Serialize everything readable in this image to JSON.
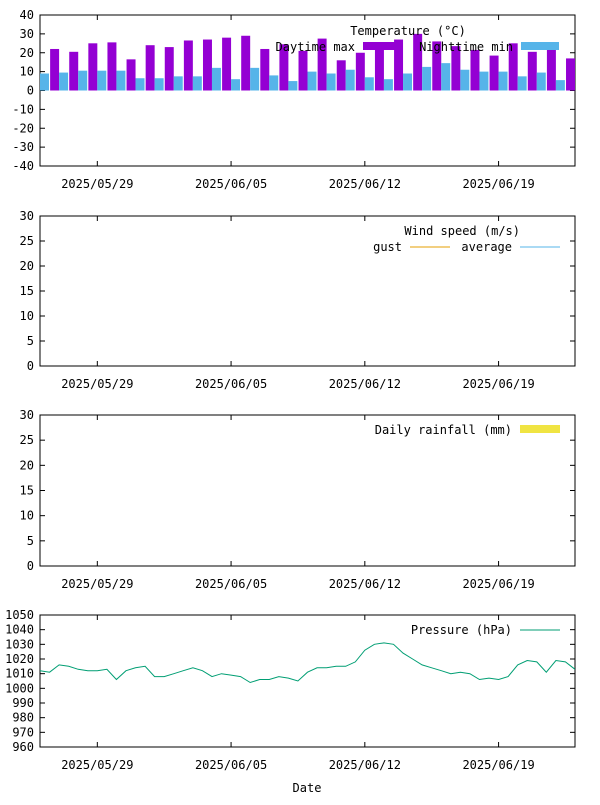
{
  "colors": {
    "daytime_max": "#9400d3",
    "nighttime_min": "#56b4e9",
    "wind_gust": "#e69f00",
    "wind_average": "#56b4e9",
    "rainfall": "#f0e442",
    "pressure": "#009e73",
    "axis": "#000000"
  },
  "xlabel": "Date",
  "x_tick_labels": [
    "2025/05/29",
    "2025/06/05",
    "2025/06/12",
    "2025/06/19"
  ],
  "x_tick_dates": [
    "2025-05-29",
    "2025-06-05",
    "2025-06-12",
    "2025-06-19"
  ],
  "x_range": [
    "2025-05-26",
    "2025-06-23"
  ],
  "chart_data": [
    {
      "type": "bar",
      "title": "Temperature (°C)",
      "ylim": [
        -40,
        40
      ],
      "yticks": [
        -40,
        -30,
        -20,
        -10,
        0,
        10,
        20,
        30,
        40
      ],
      "legend_placement": "top-right",
      "dates": [
        "2025-05-26",
        "2025-05-27",
        "2025-05-28",
        "2025-05-29",
        "2025-05-30",
        "2025-05-31",
        "2025-06-01",
        "2025-06-02",
        "2025-06-03",
        "2025-06-04",
        "2025-06-05",
        "2025-06-06",
        "2025-06-07",
        "2025-06-08",
        "2025-06-09",
        "2025-06-10",
        "2025-06-11",
        "2025-06-12",
        "2025-06-13",
        "2025-06-14",
        "2025-06-15",
        "2025-06-16",
        "2025-06-17",
        "2025-06-18",
        "2025-06-19",
        "2025-06-20",
        "2025-06-21",
        "2025-06-22",
        "2025-06-23"
      ],
      "series": [
        {
          "name": "Daytime max",
          "values": [
            22.5,
            22,
            20.5,
            25,
            25.5,
            16.5,
            24,
            23,
            26.5,
            27,
            28,
            29,
            22,
            24.5,
            21,
            27.5,
            16,
            20,
            22,
            27,
            30,
            26,
            23.5,
            21.5,
            18.5,
            25,
            20.5,
            25,
            17
          ]
        },
        {
          "name": "Nighttime min",
          "values": [
            9,
            9.5,
            10.5,
            10.5,
            10.5,
            6.5,
            6.5,
            7.5,
            7.5,
            12,
            6,
            12,
            8,
            5,
            10,
            9,
            11,
            7,
            6,
            9,
            12.5,
            14.5,
            11,
            10,
            10,
            7.5,
            9.5,
            5.5,
            5
          ]
        }
      ]
    },
    {
      "type": "line",
      "title": "Wind speed (m/s)",
      "ylim": [
        0,
        30
      ],
      "yticks": [
        0,
        5,
        10,
        15,
        20,
        25,
        30
      ],
      "legend_placement": "top-right",
      "series": [
        {
          "name": "gust",
          "values": []
        },
        {
          "name": "average",
          "values": []
        }
      ]
    },
    {
      "type": "bar",
      "title": "",
      "ylim": [
        0,
        30
      ],
      "yticks": [
        0,
        5,
        10,
        15,
        20,
        25,
        30
      ],
      "legend_placement": "top-right",
      "series": [
        {
          "name": "Daily rainfall (mm)",
          "values": []
        }
      ]
    },
    {
      "type": "line",
      "title": "",
      "ylim": [
        960,
        1050
      ],
      "yticks": [
        960,
        970,
        980,
        990,
        1000,
        1010,
        1020,
        1030,
        1040,
        1050
      ],
      "legend_placement": "top-right",
      "x_dates": [
        "2025-05-26",
        "2025-05-26T12:00",
        "2025-05-27",
        "2025-05-27T12:00",
        "2025-05-28",
        "2025-05-28T12:00",
        "2025-05-29",
        "2025-05-29T12:00",
        "2025-05-30",
        "2025-05-30T12:00",
        "2025-05-31",
        "2025-05-31T12:00",
        "2025-06-01",
        "2025-06-01T12:00",
        "2025-06-02",
        "2025-06-02T12:00",
        "2025-06-03",
        "2025-06-03T12:00",
        "2025-06-04",
        "2025-06-04T12:00",
        "2025-06-05",
        "2025-06-05T12:00",
        "2025-06-06",
        "2025-06-06T12:00",
        "2025-06-07",
        "2025-06-07T12:00",
        "2025-06-08",
        "2025-06-08T12:00",
        "2025-06-09",
        "2025-06-09T12:00",
        "2025-06-10",
        "2025-06-10T12:00",
        "2025-06-11",
        "2025-06-11T12:00",
        "2025-06-12",
        "2025-06-12T12:00",
        "2025-06-13",
        "2025-06-13T12:00",
        "2025-06-14",
        "2025-06-14T12:00",
        "2025-06-15",
        "2025-06-15T12:00",
        "2025-06-16",
        "2025-06-16T12:00",
        "2025-06-17",
        "2025-06-17T12:00",
        "2025-06-18",
        "2025-06-18T12:00",
        "2025-06-19",
        "2025-06-19T12:00",
        "2025-06-20",
        "2025-06-20T12:00",
        "2025-06-21",
        "2025-06-21T12:00",
        "2025-06-22",
        "2025-06-22T12:00",
        "2025-06-23"
      ],
      "series": [
        {
          "name": "Pressure (hPa)",
          "values": [
            1012,
            1011,
            1016,
            1015,
            1013,
            1012,
            1012,
            1013,
            1006,
            1012,
            1014,
            1015,
            1008,
            1008,
            1010,
            1012,
            1014,
            1012,
            1008,
            1010,
            1009,
            1008,
            1004,
            1006,
            1006,
            1008,
            1007,
            1005,
            1011,
            1014,
            1014,
            1015,
            1015,
            1018,
            1026,
            1030,
            1031,
            1030,
            1024,
            1020,
            1016,
            1014,
            1012,
            1010,
            1011,
            1010,
            1006,
            1007,
            1006,
            1008,
            1016,
            1019,
            1018,
            1011,
            1019,
            1018,
            1013
          ]
        }
      ]
    }
  ]
}
